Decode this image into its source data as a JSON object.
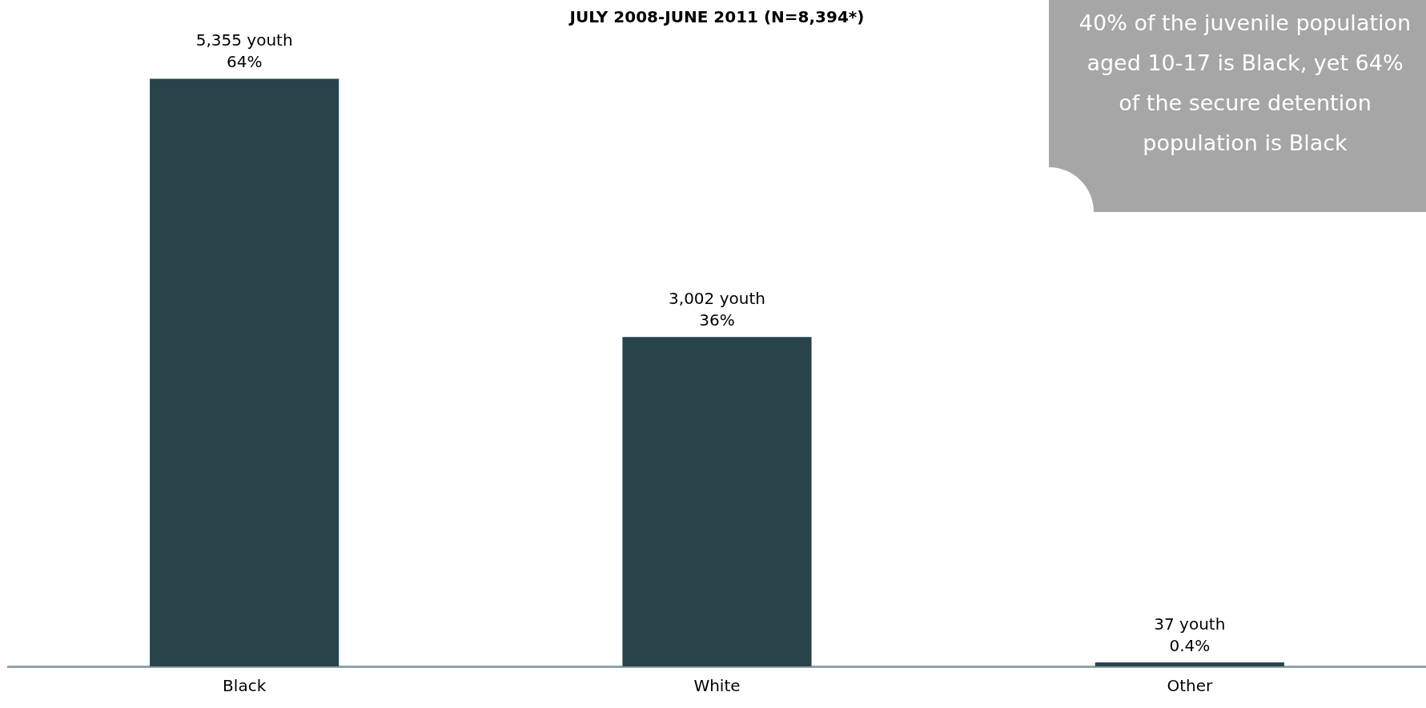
{
  "chart_data": {
    "type": "bar",
    "title": "JULY 2008-JUNE 2011 (N=8,394*)",
    "categories": [
      "Black",
      "White",
      "Other"
    ],
    "values": [
      5355,
      3002,
      37
    ],
    "color": "#29434b",
    "value_labels": [
      "5,355 youth\n64%",
      "3,002 youth\n36%",
      "37 youth\n0.4%"
    ],
    "tick_labels": "x",
    "grid": false,
    "legend": false,
    "annotations": [
      "40% of the juvenile population aged 10-17 is Black, yet 64% of the secure detention population is Black"
    ]
  }
}
